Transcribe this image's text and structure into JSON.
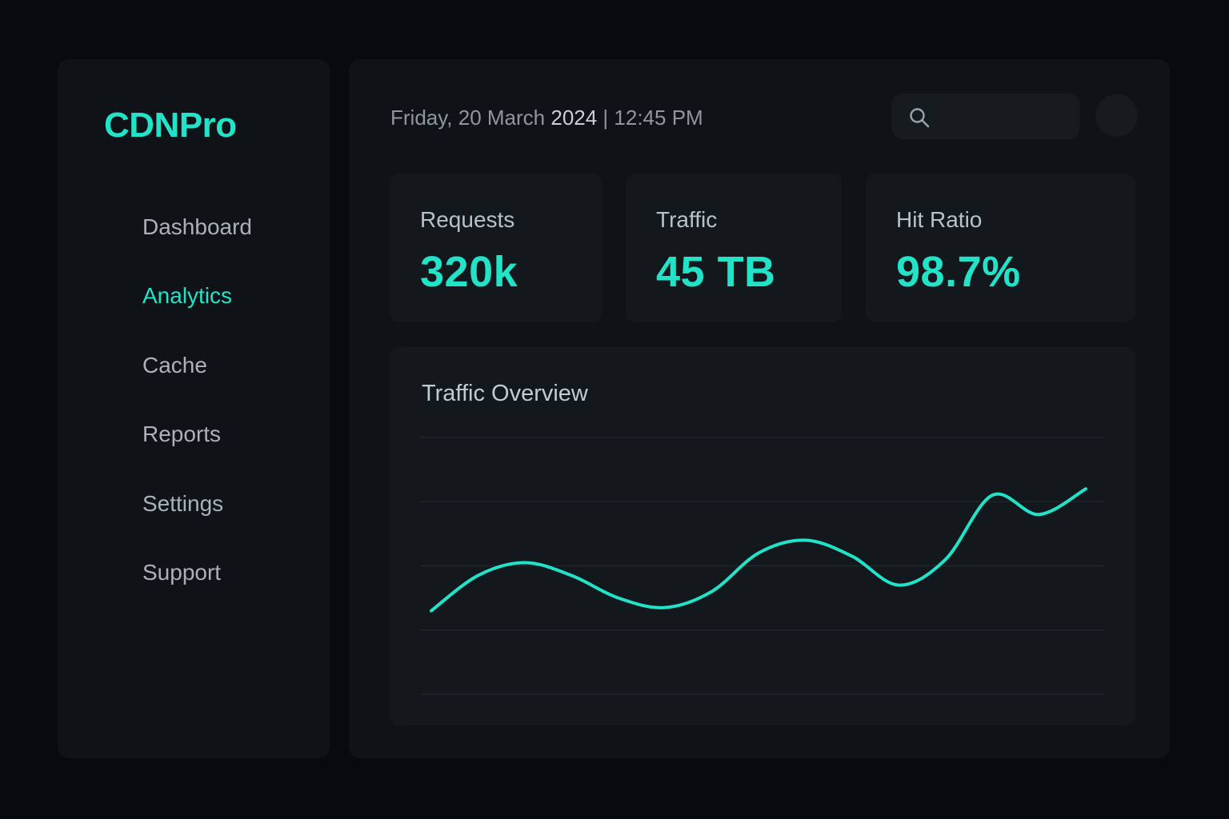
{
  "colors": {
    "accent": "#22e3c8",
    "background": "#080b0e",
    "panel": "#0f1317",
    "card": "#13181d",
    "muted_text": "#a9b2bc"
  },
  "sidebar": {
    "brand": "CDNPro",
    "items": [
      {
        "label": "Dashboard",
        "active": false
      },
      {
        "label": "Analytics",
        "active": true
      },
      {
        "label": "Cache",
        "active": false
      },
      {
        "label": "Reports",
        "active": false
      },
      {
        "label": "Settings",
        "active": false
      },
      {
        "label": "Support",
        "active": false
      }
    ]
  },
  "header": {
    "date_prefix": "Friday, 20 March ",
    "year": "2024",
    "time_part": " | 12:45 PM",
    "search_icon": "search-icon",
    "search_value": ""
  },
  "stats": [
    {
      "label": "Requests",
      "value": "320k"
    },
    {
      "label": "Traffic",
      "value": "45 TB"
    },
    {
      "label": "Hit Ratio",
      "value": "98.7%"
    }
  ],
  "chart_data": {
    "type": "line",
    "title": "Traffic Overview",
    "xlabel": "",
    "ylabel": "",
    "ylim": [
      0,
      4
    ],
    "grid": true,
    "legend": "none",
    "x": [
      0,
      1,
      2,
      3,
      4,
      5,
      6,
      7,
      8,
      9,
      10,
      11,
      12,
      13,
      14
    ],
    "series": [
      {
        "values": [
          1.3,
          1.85,
          2.05,
          1.85,
          1.5,
          1.35,
          1.6,
          2.2,
          2.4,
          2.15,
          1.7,
          2.1,
          3.1,
          2.8,
          3.2
        ]
      }
    ]
  }
}
